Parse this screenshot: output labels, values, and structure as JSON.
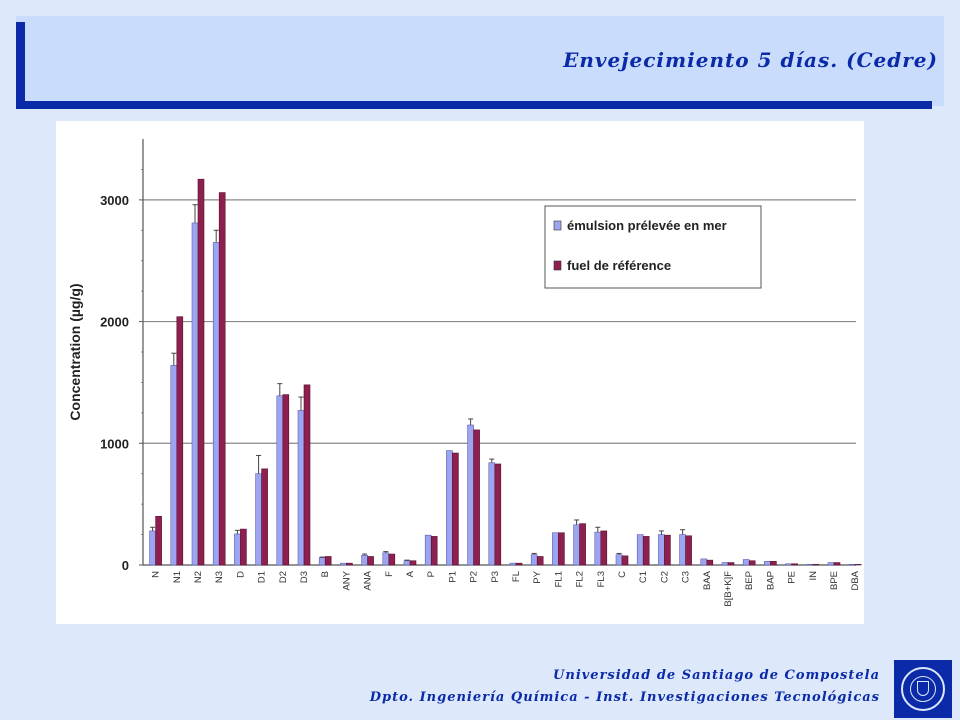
{
  "header": {
    "title": "Envejecimiento 5 días. (Cedre)"
  },
  "footer": {
    "line1": "Universidad de Santiago de Compostela",
    "line2": "Dpto. Ingeniería Química - Inst. Investigaciones Tecnológicas"
  },
  "colors": {
    "header_blue": "#0a2aa8",
    "series1": "#9da5f0",
    "series2": "#8e2050"
  },
  "chart_data": {
    "type": "bar",
    "ylabel": "Concentration (µg/g)",
    "xlabel": "",
    "ylim": [
      0,
      3500
    ],
    "yticks": [
      0,
      1000,
      2000,
      3000
    ],
    "grid": true,
    "legend_position": "top-right",
    "categories": [
      "N",
      "N1",
      "N2",
      "N3",
      "D",
      "D1",
      "D2",
      "D3",
      "B",
      "ANY",
      "ANA",
      "F",
      "A",
      "P",
      "P1",
      "P2",
      "P3",
      "FL",
      "PY",
      "FL1",
      "FL2",
      "FL3",
      "C",
      "C1",
      "C2",
      "C3",
      "BAA",
      "B[B+K]F",
      "BEP",
      "BAP",
      "PE",
      "IN",
      "BPE",
      "DBA"
    ],
    "series": [
      {
        "name": "émulsion prélevée en mer",
        "values": [
          280,
          1640,
          2810,
          2650,
          255,
          750,
          1390,
          1270,
          60,
          15,
          80,
          100,
          35,
          245,
          940,
          1150,
          840,
          15,
          85,
          265,
          330,
          270,
          85,
          250,
          250,
          250,
          50,
          20,
          45,
          30,
          10,
          5,
          20,
          5
        ],
        "errors": [
          30,
          100,
          150,
          100,
          30,
          150,
          100,
          110,
          5,
          0,
          10,
          10,
          5,
          0,
          0,
          50,
          30,
          0,
          10,
          0,
          40,
          40,
          10,
          0,
          30,
          40,
          0,
          0,
          0,
          0,
          0,
          0,
          0,
          0
        ]
      },
      {
        "name": "fuel de référence",
        "values": [
          400,
          2040,
          3170,
          3060,
          295,
          790,
          1400,
          1480,
          70,
          15,
          70,
          90,
          35,
          235,
          920,
          1110,
          830,
          15,
          70,
          265,
          340,
          280,
          75,
          235,
          245,
          240,
          40,
          20,
          35,
          30,
          10,
          5,
          20,
          5
        ]
      }
    ]
  }
}
